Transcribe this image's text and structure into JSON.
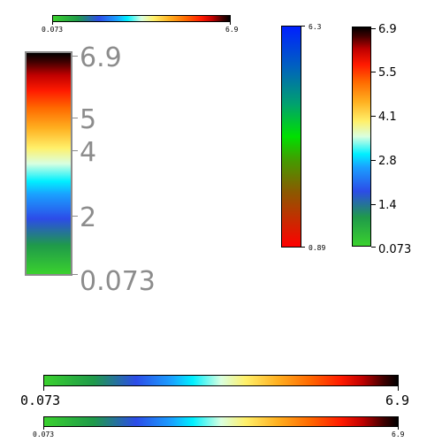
{
  "colorbars": {
    "top_small": {
      "min_label": "0.073",
      "max_label": "6.9"
    },
    "left_large": {
      "labels": [
        "6.9",
        "5",
        "4",
        "2",
        "0.073"
      ]
    },
    "mid_vertical": {
      "max_label": "6.3",
      "min_label": "0.89"
    },
    "right_vertical": {
      "labels": [
        "6.9",
        "5.5",
        "4.1",
        "2.8",
        "1.4",
        "0.073"
      ]
    },
    "bottom_wide": {
      "min_label": "0.073",
      "max_label": "6.9"
    },
    "bottom_small": {
      "min_label": "0.073",
      "max_label": "6.9"
    }
  },
  "colors": {
    "label_gray": "#8c8c8c",
    "text_black": "#000000",
    "border_gray": "#8c8c8c"
  }
}
